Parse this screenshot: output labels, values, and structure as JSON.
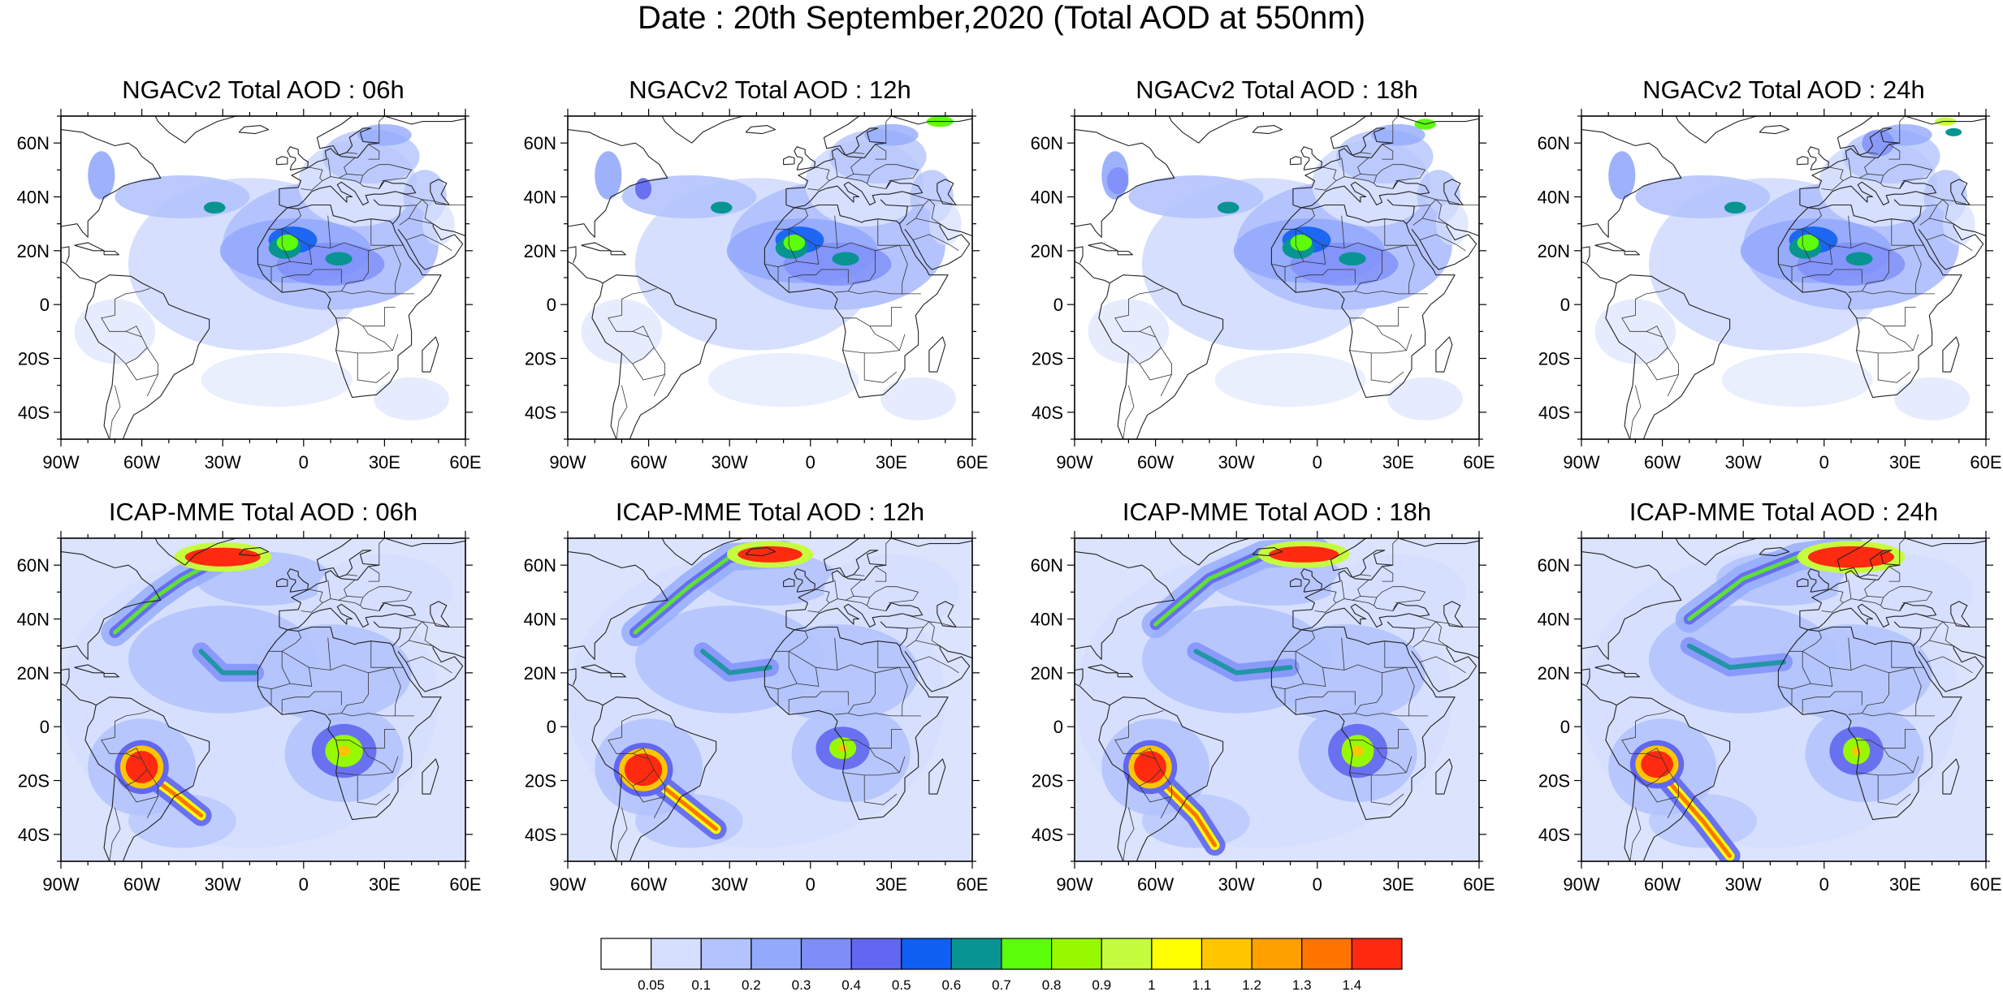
{
  "title": "Date : 20th September,2020 (Total AOD at 550nm)",
  "rows": [
    {
      "model": "NGACv2",
      "panels": [
        {
          "title": "NGACv2 Total AOD : 06h"
        },
        {
          "title": "NGACv2 Total AOD : 12h"
        },
        {
          "title": "NGACv2 Total AOD : 18h"
        },
        {
          "title": "NGACv2 Total AOD : 24h"
        }
      ]
    },
    {
      "model": "ICAP-MME",
      "panels": [
        {
          "title": "ICAP-MME Total AOD : 06h"
        },
        {
          "title": "ICAP-MME Total AOD : 12h"
        },
        {
          "title": "ICAP-MME Total AOD : 18h"
        },
        {
          "title": "ICAP-MME Total AOD : 24h"
        }
      ]
    }
  ],
  "map": {
    "lon_range": [
      -90,
      60
    ],
    "lat_range": [
      -50,
      70
    ],
    "lat_tick_labels": [
      "60N",
      "40N",
      "20N",
      "0",
      "20S",
      "40S"
    ],
    "lat_tick_values": [
      60,
      40,
      20,
      0,
      -20,
      -40
    ],
    "lon_tick_labels": [
      "90W",
      "60W",
      "30W",
      "0",
      "30E",
      "60E"
    ],
    "lon_tick_values": [
      -90,
      -60,
      -30,
      0,
      30,
      60
    ]
  },
  "colorbar": {
    "colors": [
      "#ffffff",
      "#d6dffe",
      "#b4c3fd",
      "#93aafc",
      "#7e8ef9",
      "#6167f0",
      "#0f5ff3",
      "#089491",
      "#5cfd0a",
      "#97f900",
      "#c6fc3e",
      "#ffff00",
      "#ffc600",
      "#ff9f00",
      "#ff7400",
      "#ff2a10"
    ],
    "labels": [
      "0.05",
      "0.1",
      "0.2",
      "0.3",
      "0.4",
      "0.5",
      "0.6",
      "0.7",
      "0.8",
      "0.9",
      "1",
      "1.1",
      "1.2",
      "1.3",
      "1.4"
    ]
  }
}
